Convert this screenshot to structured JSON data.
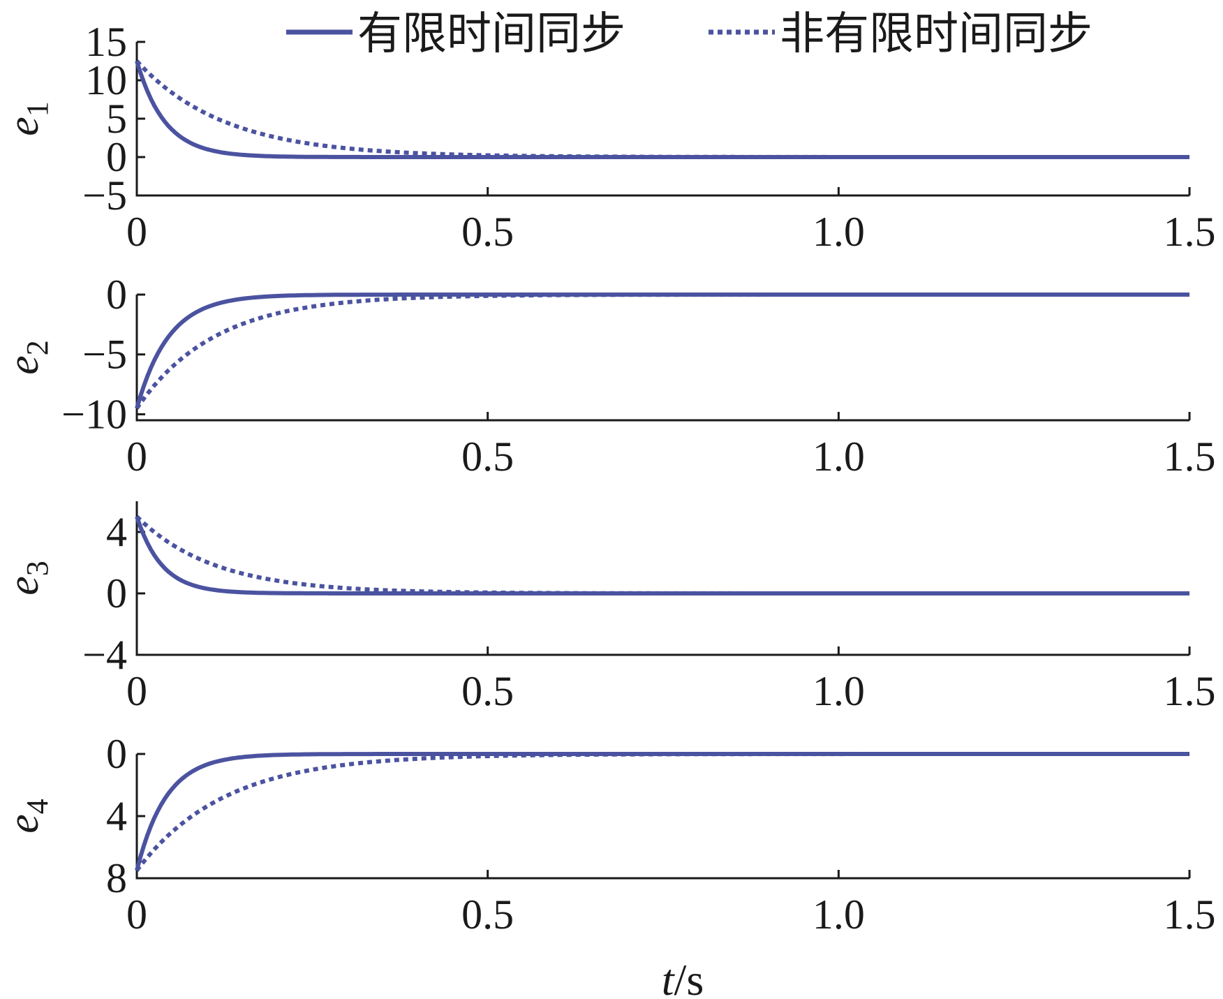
{
  "chart_data": {
    "type": "line",
    "layout": "stacked-subplots",
    "xlabel_italic": "t",
    "xlabel_rest": "/s",
    "legend": {
      "placement": "top-center",
      "entries": [
        {
          "label": "有限时间同步",
          "style": "solid",
          "color": "#4b53a0"
        },
        {
          "label": "非有限时间同步",
          "style": "dotted",
          "color": "#4b53a0"
        }
      ]
    },
    "xlim": [
      0,
      1.5
    ],
    "xticks": [
      0,
      0.5,
      1.0,
      1.5
    ],
    "xtick_labels": [
      "0",
      "0.5",
      "1.0",
      "1.5"
    ],
    "subplots": [
      {
        "ylabel_var": "e",
        "ylabel_sub": "1",
        "ylim": [
          -5,
          15
        ],
        "yticks": [
          15,
          10,
          5,
          0,
          -5
        ],
        "ytick_labels": [
          "15",
          "10",
          "5",
          "0",
          "−5"
        ],
        "series": [
          {
            "style": "solid",
            "initial": 12.5,
            "rate": 25
          },
          {
            "style": "dotted",
            "initial": 12.5,
            "rate": 8
          }
        ]
      },
      {
        "ylabel_var": "e",
        "ylabel_sub": "2",
        "ylim": [
          -10.5,
          0
        ],
        "yticks": [
          0,
          -5,
          -10
        ],
        "ytick_labels": [
          "0",
          "−5",
          "−10"
        ],
        "series": [
          {
            "style": "solid",
            "initial": -9.5,
            "rate": 22
          },
          {
            "style": "dotted",
            "initial": -9.5,
            "rate": 9
          }
        ]
      },
      {
        "ylabel_var": "e",
        "ylabel_sub": "3",
        "ylim": [
          -4,
          6
        ],
        "yticks": [
          4,
          0,
          -4
        ],
        "ytick_labels": [
          "4",
          "0",
          "−4"
        ],
        "series": [
          {
            "style": "solid",
            "initial": 5,
            "rate": 28
          },
          {
            "style": "dotted",
            "initial": 5,
            "rate": 9
          }
        ]
      },
      {
        "ylabel_var": "e",
        "ylabel_sub": "4",
        "ylim": [
          8,
          0
        ],
        "yticks": [
          0,
          4,
          8
        ],
        "ytick_labels": [
          "0",
          "4",
          "8"
        ],
        "series": [
          {
            "style": "solid",
            "initial": 7.5,
            "rate": 24
          },
          {
            "style": "dotted",
            "initial": 7.5,
            "rate": 8
          }
        ]
      }
    ]
  }
}
